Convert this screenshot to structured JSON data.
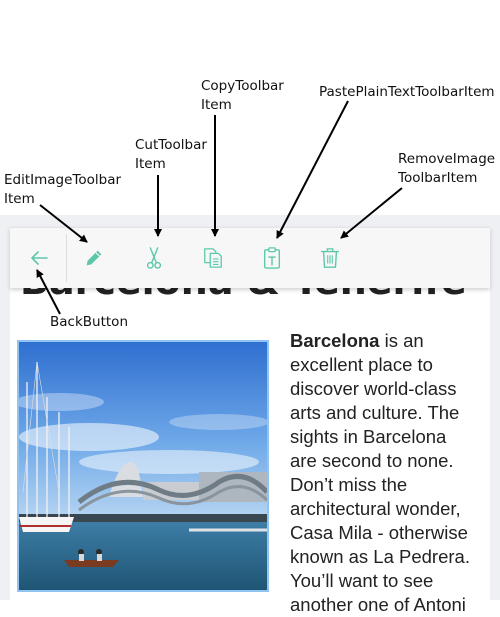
{
  "annotations": {
    "copy": [
      "CopyToolbar",
      "Item"
    ],
    "paste": [
      "PastePlainTextToolbarItem"
    ],
    "cut": [
      "CutToolbar",
      "Item"
    ],
    "edit": [
      "EditImageToolbar",
      "Item"
    ],
    "remove": [
      "RemoveImage",
      "ToolbarItem"
    ],
    "back": [
      "BackButton"
    ]
  },
  "toolbar": {
    "icon_color": "#5bc8ab",
    "items": [
      {
        "name": "back-button",
        "icon": "arrow-left-icon"
      },
      {
        "name": "edit-image-button",
        "icon": "pencil-icon"
      },
      {
        "name": "cut-button",
        "icon": "scissors-icon"
      },
      {
        "name": "copy-button",
        "icon": "copy-icon"
      },
      {
        "name": "paste-plain-text-button",
        "icon": "clipboard-icon"
      },
      {
        "name": "remove-image-button",
        "icon": "trash-icon"
      }
    ]
  },
  "document": {
    "heading": "Barcelona & Tenerife",
    "bold_word": "Barcelona",
    "paragraph_lines": [
      " is an",
      "excellent place to",
      "discover world-class",
      "arts and culture. The",
      "sights in Barcelona",
      "are second to none.",
      "Don’t miss the",
      "architectural wonder,",
      "Casa Mila - otherwise",
      "known as La Pedrera.",
      "You’ll want to see",
      "another one of Antoni"
    ],
    "image_selected_border": "#8fc3f0"
  }
}
